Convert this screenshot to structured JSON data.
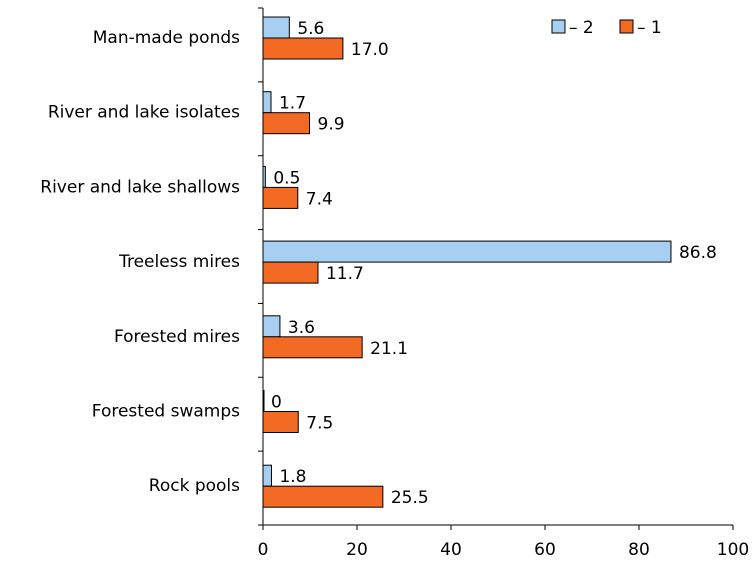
{
  "chart_data": {
    "type": "bar",
    "orientation": "horizontal",
    "categories": [
      "Man-made ponds",
      "River and lake isolates",
      "River and lake shallows",
      "Treeless mires",
      "Forested mires",
      "Forested swamps",
      "Rock pools"
    ],
    "series": [
      {
        "name": "– 2",
        "color": "#a6cff2",
        "values": [
          5.6,
          1.7,
          0.5,
          86.8,
          3.6,
          0,
          1.8
        ],
        "labels": [
          "5.6",
          "1.7",
          "0.5",
          "86.8",
          "3.6",
          "0",
          "1.8"
        ]
      },
      {
        "name": "– 1",
        "color": "#f26a24",
        "values": [
          17.0,
          9.9,
          7.4,
          11.7,
          21.1,
          7.5,
          25.5
        ],
        "labels": [
          "17.0",
          "9.9",
          "7.4",
          "11.7",
          "21.1",
          "7.5",
          "25.5"
        ]
      }
    ],
    "xlim": [
      0,
      100
    ],
    "xticks": [
      "0",
      "20",
      "40",
      "60",
      "80",
      "100"
    ],
    "legend_position": "top-right",
    "grid": false
  }
}
